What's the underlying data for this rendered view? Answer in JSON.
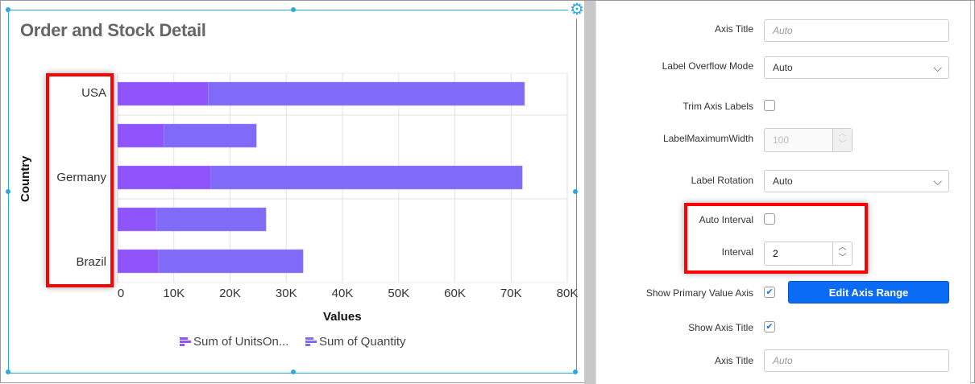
{
  "widget": {
    "title": "Order and Stock Detail",
    "settings_icon": "gear-icon"
  },
  "chart_data": {
    "type": "bar",
    "orientation": "horizontal",
    "stacked": true,
    "categories": [
      "USA",
      "",
      "Germany",
      "",
      "Brazil"
    ],
    "series": [
      {
        "name": "Sum of UnitsOn...",
        "values": [
          16100,
          8200,
          16600,
          6900,
          7300
        ],
        "color": "#8f54fb"
      },
      {
        "name": "Sum of Quantity",
        "values": [
          56300,
          16500,
          55400,
          19500,
          25700
        ],
        "color": "#7f6bf7"
      }
    ],
    "xlabel": "Values",
    "ylabel": "Country",
    "xlim": [
      0,
      80000
    ],
    "xticks": [
      "0",
      "10K",
      "20K",
      "30K",
      "40K",
      "50K",
      "60K",
      "70K",
      "80K"
    ],
    "grid": true,
    "legend": "bottom"
  },
  "panel": {
    "axis_title_1": {
      "label": "Axis Title",
      "placeholder": "Auto"
    },
    "label_overflow": {
      "label": "Label Overflow Mode",
      "value": "Auto"
    },
    "trim_labels": {
      "label": "Trim Axis Labels",
      "checked": false
    },
    "label_max_width": {
      "label": "LabelMaximumWidth",
      "value": "100"
    },
    "label_rotation": {
      "label": "Label Rotation",
      "value": "Auto"
    },
    "auto_interval": {
      "label": "Auto Interval",
      "checked": false
    },
    "interval": {
      "label": "Interval",
      "value": "2"
    },
    "show_primary": {
      "label": "Show Primary Value Axis",
      "checked": true,
      "button": "Edit Axis Range"
    },
    "show_axis_title": {
      "label": "Show Axis Title",
      "checked": true
    },
    "axis_title_2": {
      "label": "Axis Title",
      "placeholder": "Auto"
    }
  },
  "colors": {
    "accent": "#0a6cf5",
    "selection": "#29a9e0",
    "highlight": "#ff0000"
  }
}
